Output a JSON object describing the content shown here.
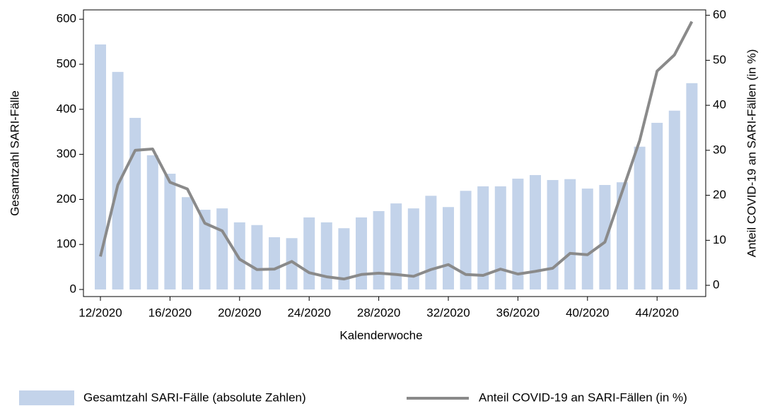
{
  "chart_data": {
    "type": "bar-line",
    "x_label": "Kalenderwoche",
    "y_label": "Gesamtzahl SARI-Fälle",
    "y2_label": "Anteil COVID-19 an SARI-Fällen (in %)",
    "categories": [
      "12/2020",
      null,
      null,
      null,
      "16/2020",
      null,
      null,
      null,
      "20/2020",
      null,
      null,
      null,
      "24/2020",
      null,
      null,
      null,
      "28/2020",
      null,
      null,
      null,
      "32/2020",
      null,
      null,
      null,
      "36/2020",
      null,
      null,
      null,
      "40/2020",
      null,
      null,
      null,
      "44/2020",
      null,
      null
    ],
    "series": [
      {
        "name": "Gesamtzahl SARI-Fälle (absolute Zahlen)",
        "type": "bar",
        "color": "#c3d3ea",
        "values": [
          544,
          483,
          381,
          298,
          257,
          205,
          177,
          180,
          149,
          143,
          116,
          114,
          160,
          149,
          136,
          160,
          174,
          191,
          180,
          208,
          183,
          219,
          229,
          229,
          246,
          254,
          243,
          245,
          224,
          232,
          238,
          317,
          370,
          397,
          458
        ]
      },
      {
        "name": "Anteil COVID-19 an SARI-Fällen (in %)",
        "type": "line",
        "axis": "y2",
        "color": "#8a8a8a",
        "values": [
          6.4,
          22.3,
          30.0,
          30.3,
          22.9,
          21.4,
          13.8,
          12.1,
          5.8,
          3.5,
          3.6,
          5.3,
          2.8,
          1.9,
          1.4,
          2.4,
          2.7,
          2.4,
          2.0,
          3.5,
          4.6,
          2.4,
          2.2,
          3.6,
          2.5,
          3.1,
          3.8,
          7.1,
          6.8,
          9.6,
          20.9,
          32.2,
          47.6,
          51.2,
          58.6
        ]
      }
    ],
    "ylim": [
      -15.7,
      620.7
    ],
    "yticks": [
      0,
      100,
      200,
      300,
      400,
      500,
      600
    ],
    "y2lim": [
      -2.5,
      61.2
    ],
    "y2ticks": [
      0,
      10,
      20,
      30,
      40,
      50,
      60
    ],
    "legend": "bottom"
  }
}
